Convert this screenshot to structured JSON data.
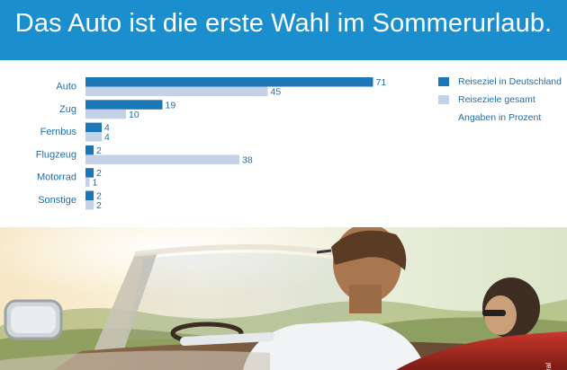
{
  "header": {
    "title": "Das Auto ist die erste Wahl im Sommerurlaub."
  },
  "chart_data": {
    "type": "bar",
    "orientation": "horizontal",
    "categories": [
      "Auto",
      "Zug",
      "Fernbus",
      "Flugzeug",
      "Motorrad",
      "Sonstige"
    ],
    "series": [
      {
        "name": "Reiseziel in Deutschland",
        "values": [
          71,
          19,
          4,
          2,
          2,
          2
        ],
        "color": "#1b76b8"
      },
      {
        "name": "Reiseziele gesamt",
        "values": [
          45,
          10,
          4,
          38,
          1,
          2
        ],
        "color": "#c3d2e6"
      }
    ],
    "note": "Angaben in Prozent",
    "legend_position": "right"
  },
  "credit": "© Aral"
}
